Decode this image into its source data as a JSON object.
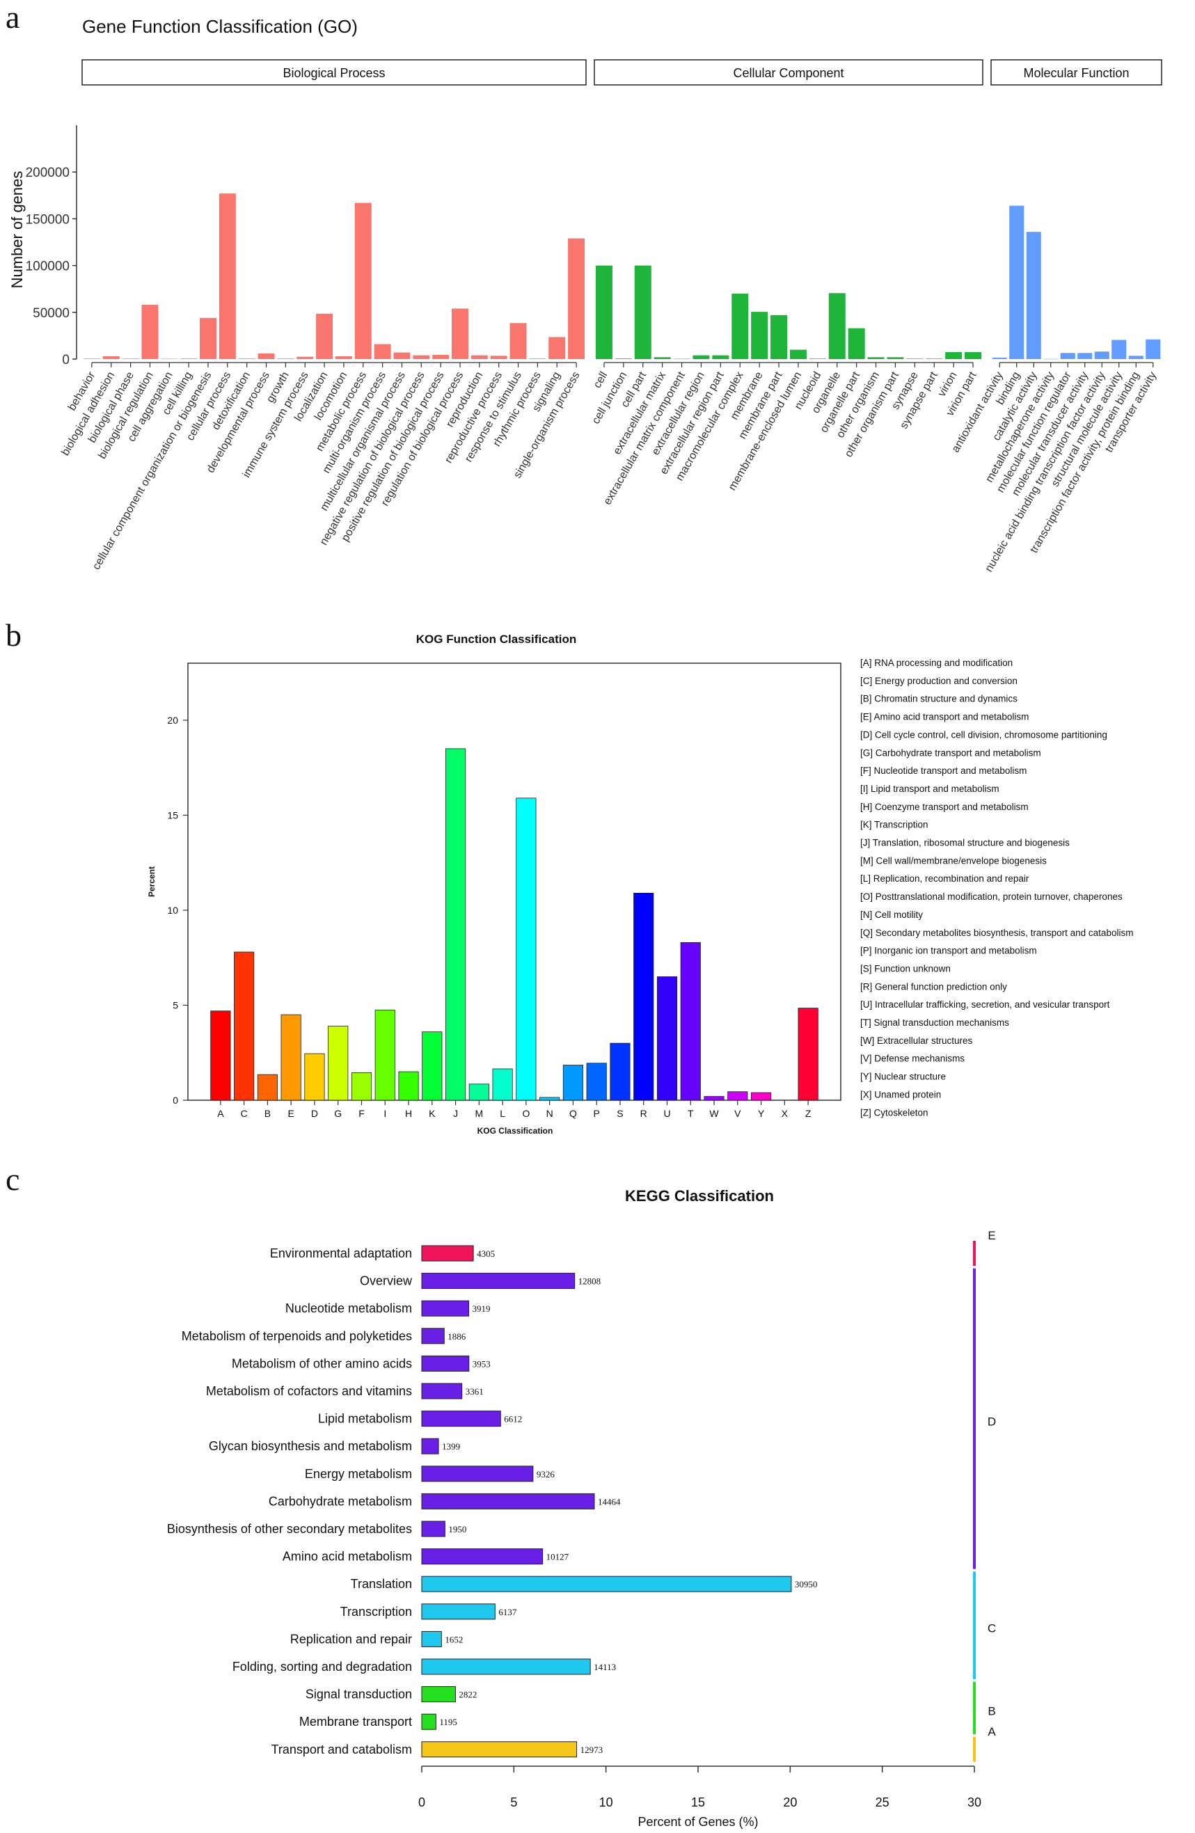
{
  "panels": {
    "a": "a",
    "b": "b",
    "c": "c"
  },
  "chart_data": [
    {
      "type": "bar",
      "title": "Gene Function Classification (GO)",
      "ylabel": "Number of genes",
      "ylim": [
        0,
        250000
      ],
      "yticks": [
        "0",
        "50000",
        "100000",
        "150000",
        "200000"
      ],
      "ytick_values": [
        0,
        50000,
        100000,
        150000,
        200000
      ],
      "groups": [
        {
          "name": "Biological Process",
          "color": "#F8766D",
          "categories": [
            "behavior",
            "biological adhesion",
            "biological phase",
            "biological regulation",
            "cell aggregation",
            "cell killing",
            "cellular component organization or biogenesis",
            "cellular process",
            "detoxification",
            "developmental process",
            "growth",
            "immune system process",
            "localization",
            "locomotion",
            "metabolic process",
            "multi-organism process",
            "multicellular organismal process",
            "negative regulation of biological process",
            "positive regulation of biological process",
            "regulation of biological process",
            "reproduction",
            "reproductive process",
            "response to stimulus",
            "rhythmic process",
            "signaling",
            "single-organism process"
          ],
          "values": [
            500,
            3000,
            500,
            58000,
            300,
            600,
            44000,
            177000,
            600,
            6000,
            600,
            2500,
            48500,
            3000,
            167000,
            16000,
            7000,
            4000,
            4500,
            54000,
            4000,
            3500,
            38500,
            600,
            23500,
            129000
          ]
        },
        {
          "name": "Cellular Component",
          "color": "#1EB53A",
          "categories": [
            "cell",
            "cell junction",
            "cell part",
            "extracellular matrix",
            "extracellular matrix component",
            "extracellular region",
            "extracellular region part",
            "macromolecular complex",
            "membrane",
            "membrane part",
            "membrane-enclosed lumen",
            "nucleoid",
            "organelle",
            "organelle part",
            "other organism",
            "other organism part",
            "synapse",
            "synapse part",
            "virion",
            "virion part"
          ],
          "values": [
            100000,
            600,
            100000,
            2000,
            300,
            4000,
            4000,
            70000,
            50500,
            47000,
            10000,
            500,
            70500,
            33000,
            2000,
            2000,
            500,
            500,
            7500,
            7500
          ]
        },
        {
          "name": "Molecular Function",
          "color": "#619CFF",
          "categories": [
            "antioxidant activity",
            "binding",
            "catalytic activity",
            "metallochaperone activity",
            "molecular function regulator",
            "molecular transducer activity",
            "nucleic acid binding transcription factor activity",
            "structural molecule activity",
            "transcription factor activity, protein binding",
            "transporter activity"
          ],
          "values": [
            1500,
            164000,
            136000,
            200,
            6500,
            6500,
            8000,
            20500,
            3500,
            21000
          ]
        }
      ]
    },
    {
      "type": "bar",
      "title": "KOG Function Classification",
      "xlabel": "KOG Classification",
      "ylabel": "Percent",
      "ylim": [
        0,
        23
      ],
      "yticks": [
        "0",
        "5",
        "10",
        "15",
        "20"
      ],
      "ytick_values": [
        0,
        5,
        10,
        15,
        20
      ],
      "categories": [
        "A",
        "C",
        "B",
        "E",
        "D",
        "G",
        "F",
        "I",
        "H",
        "K",
        "J",
        "M",
        "L",
        "O",
        "N",
        "Q",
        "P",
        "S",
        "R",
        "U",
        "T",
        "W",
        "V",
        "Y",
        "X",
        "Z"
      ],
      "values": [
        4.7,
        7.8,
        1.35,
        4.5,
        2.45,
        3.9,
        1.45,
        4.75,
        1.5,
        3.6,
        18.5,
        0.85,
        1.65,
        15.9,
        0.15,
        1.85,
        1.95,
        3.0,
        10.9,
        6.5,
        8.3,
        0.2,
        0.45,
        0.4,
        0,
        4.85
      ],
      "colors": [
        "#FF0000",
        "#FF3300",
        "#FF6600",
        "#FF9900",
        "#FFCC00",
        "#CCFF00",
        "#99FF00",
        "#66FF00",
        "#33FF00",
        "#00FF33",
        "#00FF66",
        "#00FF99",
        "#00FFCC",
        "#00FFFF",
        "#00CCFF",
        "#0099FF",
        "#0066FF",
        "#0033FF",
        "#0000FF",
        "#3300FF",
        "#6600FF",
        "#9900FF",
        "#CC00FF",
        "#FF00CC",
        "#FF0099",
        "#FF0033"
      ],
      "legend": [
        "[A] RNA processing and modification",
        "[C] Energy production and conversion",
        "[B] Chromatin structure and dynamics",
        "[E] Amino acid transport and metabolism",
        "[D] Cell cycle control, cell division, chromosome partitioning",
        "[G] Carbohydrate transport and metabolism",
        "[F] Nucleotide transport and metabolism",
        "[I] Lipid transport and metabolism",
        "[H] Coenzyme transport and metabolism",
        "[K] Transcription",
        "[J] Translation, ribosomal structure and biogenesis",
        "[M] Cell wall/membrane/envelope biogenesis",
        "[L] Replication, recombination and repair",
        "[O] Posttranslational modification, protein turnover, chaperones",
        "[N] Cell motility",
        "[Q] Secondary metabolites biosynthesis, transport and catabolism",
        "[P] Inorganic ion transport and metabolism",
        "[S] Function unknown",
        "[R] General function prediction only",
        "[U] Intracellular trafficking, secretion, and vesicular transport",
        "[T] Signal transduction mechanisms",
        "[W] Extracellular structures",
        "[V] Defense mechanisms",
        "[Y] Nuclear structure",
        "[X] Unamed protein",
        "[Z] Cytoskeleton"
      ],
      "legend_position": "right"
    },
    {
      "type": "bar",
      "orientation": "horizontal",
      "title": "KEGG Classification",
      "xlabel": "Percent of Genes (%)",
      "xlim": [
        0,
        30
      ],
      "xticks": [
        "0",
        "5",
        "10",
        "15",
        "20",
        "25",
        "30"
      ],
      "xtick_values": [
        0,
        5,
        10,
        15,
        20,
        25,
        30
      ],
      "categories": [
        "Environmental adaptation",
        "Overview",
        "Nucleotide metabolism",
        "Metabolism of terpenoids and polyketides",
        "Metabolism of other amino acids",
        "Metabolism of cofactors and vitamins",
        "Lipid metabolism",
        "Glycan biosynthesis and metabolism",
        "Energy metabolism",
        "Carbohydrate metabolism",
        "Biosynthesis of other secondary metabolites",
        "Amino acid metabolism",
        "Translation",
        "Transcription",
        "Replication and repair",
        "Folding, sorting and degradation",
        "Signal transduction",
        "Membrane transport",
        "Transport and catabolism"
      ],
      "percents": [
        2.8,
        8.3,
        2.55,
        1.22,
        2.56,
        2.18,
        4.28,
        0.91,
        6.04,
        9.37,
        1.26,
        6.56,
        20.06,
        3.98,
        1.07,
        9.15,
        1.83,
        0.77,
        8.41
      ],
      "counts": [
        "4305",
        "12808",
        "3919",
        "1886",
        "3953",
        "3361",
        "6612",
        "1399",
        "9326",
        "14464",
        "1950",
        "10127",
        "30950",
        "6137",
        "1652",
        "14113",
        "2822",
        "1195",
        "12973"
      ],
      "groups": [
        {
          "name": "E",
          "color": "#F0145A",
          "start": 0,
          "end": 0
        },
        {
          "name": "D",
          "color": "#6A1FE6",
          "start": 1,
          "end": 11
        },
        {
          "name": "C",
          "color": "#1EC8EF",
          "start": 12,
          "end": 15
        },
        {
          "name": "B",
          "color": "#25E01E",
          "start": 16,
          "end": 17
        },
        {
          "name": "A",
          "color": "#F5C518",
          "start": 18,
          "end": 18
        }
      ]
    }
  ]
}
